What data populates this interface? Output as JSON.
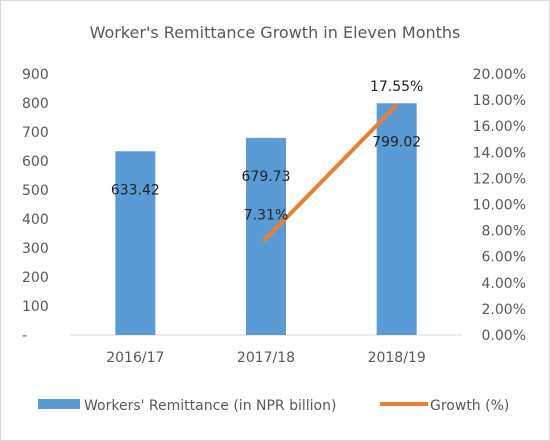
{
  "chart_data": {
    "type": "bar",
    "title": "Worker's Remittance Growth in Eleven Months",
    "categories": [
      "2016/17",
      "2017/18",
      "2018/19"
    ],
    "series": [
      {
        "name": "Workers' Remittance (in NPR billion)",
        "type": "bar",
        "axis": "left",
        "color": "#5b9bd5",
        "values": [
          633.42,
          679.73,
          799.02
        ],
        "labels": [
          "633.42",
          "679.73",
          "799.02"
        ]
      },
      {
        "name": "Growth (%)",
        "type": "line",
        "axis": "right",
        "color": "#ed7d31",
        "values": [
          null,
          7.31,
          17.55
        ],
        "labels": [
          "",
          "7.31%",
          "17.55%"
        ]
      }
    ],
    "ylim": [
      0,
      900
    ],
    "y2lim": [
      0,
      20
    ],
    "yticks": [
      "-",
      "100",
      "200",
      "300",
      "400",
      "500",
      "600",
      "700",
      "800",
      "900"
    ],
    "y2ticks": [
      "0.00%",
      "2.00%",
      "4.00%",
      "6.00%",
      "8.00%",
      "10.00%",
      "12.00%",
      "14.00%",
      "16.00%",
      "18.00%",
      "20.00%"
    ],
    "grid": false,
    "legend": "bottom"
  }
}
